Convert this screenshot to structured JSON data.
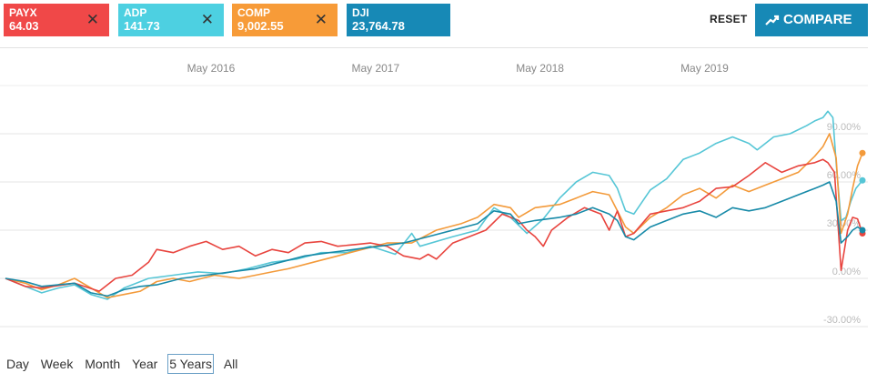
{
  "tickers": [
    {
      "symbol": "PAYX",
      "price": "64.03",
      "color": "#f04848",
      "line": "#e8443e"
    },
    {
      "symbol": "ADP",
      "price": "141.73",
      "color": "#4dd0e1",
      "line": "#56c6d6"
    },
    {
      "symbol": "COMP",
      "price": "9,002.55",
      "color": "#f79b38",
      "line": "#f39a3a"
    },
    {
      "symbol": "DJI",
      "price": "23,764.78",
      "color": "#1789b6",
      "line": "#178aa8"
    }
  ],
  "toolbar": {
    "reset_label": "RESET",
    "compare_label": "COMPARE",
    "close_glyph": "✕"
  },
  "range": {
    "items": [
      "Day",
      "Week",
      "Month",
      "Year",
      "5 Years",
      "All"
    ],
    "selected": "5 Years"
  },
  "chart_data": {
    "type": "line",
    "x_range": [
      2015.08,
      2020.29
    ],
    "ylim": [
      -35,
      110
    ],
    "x_ticks": [
      {
        "label": "May 2016",
        "x": 2016.33
      },
      {
        "label": "May 2017",
        "x": 2017.33
      },
      {
        "label": "May 2018",
        "x": 2018.33
      },
      {
        "label": "May 2019",
        "x": 2019.33
      }
    ],
    "y_ticks": [
      {
        "label": "90.00%",
        "value": 90
      },
      {
        "label": "60.00%",
        "value": 60
      },
      {
        "label": "30.00%",
        "value": 30
      },
      {
        "label": "0.00%",
        "value": 0
      },
      {
        "label": "-30.00%",
        "value": -30
      }
    ],
    "grid": true,
    "series": [
      {
        "name": "PAYX",
        "points": [
          [
            2015.08,
            0
          ],
          [
            2015.2,
            -5
          ],
          [
            2015.3,
            -6
          ],
          [
            2015.5,
            -3
          ],
          [
            2015.65,
            -8
          ],
          [
            2015.75,
            0
          ],
          [
            2015.85,
            2
          ],
          [
            2015.95,
            10
          ],
          [
            2016.0,
            18
          ],
          [
            2016.1,
            16
          ],
          [
            2016.2,
            20
          ],
          [
            2016.3,
            23
          ],
          [
            2016.4,
            18
          ],
          [
            2016.5,
            20
          ],
          [
            2016.6,
            14
          ],
          [
            2016.7,
            18
          ],
          [
            2016.8,
            16
          ],
          [
            2016.9,
            22
          ],
          [
            2017.0,
            23
          ],
          [
            2017.1,
            20
          ],
          [
            2017.2,
            21
          ],
          [
            2017.3,
            22
          ],
          [
            2017.4,
            20
          ],
          [
            2017.5,
            14
          ],
          [
            2017.6,
            12
          ],
          [
            2017.65,
            15
          ],
          [
            2017.7,
            12
          ],
          [
            2017.8,
            22
          ],
          [
            2017.9,
            26
          ],
          [
            2018.0,
            30
          ],
          [
            2018.1,
            40
          ],
          [
            2018.15,
            38
          ],
          [
            2018.2,
            36
          ],
          [
            2018.25,
            30
          ],
          [
            2018.3,
            26
          ],
          [
            2018.35,
            20
          ],
          [
            2018.4,
            30
          ],
          [
            2018.5,
            38
          ],
          [
            2018.6,
            44
          ],
          [
            2018.7,
            40
          ],
          [
            2018.75,
            30
          ],
          [
            2018.8,
            42
          ],
          [
            2018.85,
            26
          ],
          [
            2018.9,
            28
          ],
          [
            2019.0,
            40
          ],
          [
            2019.1,
            42
          ],
          [
            2019.2,
            44
          ],
          [
            2019.3,
            48
          ],
          [
            2019.4,
            56
          ],
          [
            2019.5,
            57
          ],
          [
            2019.6,
            64
          ],
          [
            2019.7,
            72
          ],
          [
            2019.8,
            66
          ],
          [
            2019.9,
            70
          ],
          [
            2020.0,
            72
          ],
          [
            2020.05,
            74
          ],
          [
            2020.08,
            72
          ],
          [
            2020.12,
            66
          ],
          [
            2020.16,
            5
          ],
          [
            2020.2,
            30
          ],
          [
            2020.23,
            38
          ],
          [
            2020.26,
            37
          ],
          [
            2020.29,
            28
          ]
        ]
      },
      {
        "name": "ADP",
        "points": [
          [
            2015.08,
            0
          ],
          [
            2015.2,
            -5
          ],
          [
            2015.3,
            -9
          ],
          [
            2015.4,
            -6
          ],
          [
            2015.5,
            -4
          ],
          [
            2015.6,
            -10
          ],
          [
            2015.7,
            -13
          ],
          [
            2015.8,
            -6
          ],
          [
            2015.95,
            0
          ],
          [
            2016.1,
            2
          ],
          [
            2016.25,
            4
          ],
          [
            2016.4,
            3
          ],
          [
            2016.55,
            6
          ],
          [
            2016.7,
            10
          ],
          [
            2016.85,
            12
          ],
          [
            2017.0,
            16
          ],
          [
            2017.15,
            16
          ],
          [
            2017.3,
            20
          ],
          [
            2017.45,
            15
          ],
          [
            2017.55,
            28
          ],
          [
            2017.6,
            20
          ],
          [
            2017.8,
            26
          ],
          [
            2017.95,
            30
          ],
          [
            2018.05,
            44
          ],
          [
            2018.15,
            38
          ],
          [
            2018.25,
            28
          ],
          [
            2018.35,
            37
          ],
          [
            2018.45,
            50
          ],
          [
            2018.55,
            60
          ],
          [
            2018.65,
            66
          ],
          [
            2018.75,
            64
          ],
          [
            2018.8,
            56
          ],
          [
            2018.85,
            42
          ],
          [
            2018.9,
            40
          ],
          [
            2019.0,
            55
          ],
          [
            2019.1,
            62
          ],
          [
            2019.2,
            74
          ],
          [
            2019.3,
            78
          ],
          [
            2019.4,
            84
          ],
          [
            2019.5,
            88
          ],
          [
            2019.6,
            84
          ],
          [
            2019.65,
            80
          ],
          [
            2019.75,
            88
          ],
          [
            2019.85,
            90
          ],
          [
            2019.95,
            95
          ],
          [
            2020.0,
            98
          ],
          [
            2020.05,
            100
          ],
          [
            2020.08,
            104
          ],
          [
            2020.11,
            100
          ],
          [
            2020.13,
            72
          ],
          [
            2020.16,
            36
          ],
          [
            2020.19,
            38
          ],
          [
            2020.22,
            48
          ],
          [
            2020.25,
            56
          ],
          [
            2020.29,
            61
          ]
        ]
      },
      {
        "name": "COMP",
        "points": [
          [
            2015.08,
            0
          ],
          [
            2015.2,
            -3
          ],
          [
            2015.3,
            -7
          ],
          [
            2015.4,
            -4
          ],
          [
            2015.5,
            0
          ],
          [
            2015.6,
            -6
          ],
          [
            2015.7,
            -12
          ],
          [
            2015.8,
            -10
          ],
          [
            2015.9,
            -8
          ],
          [
            2016.0,
            -2
          ],
          [
            2016.1,
            0
          ],
          [
            2016.2,
            -2
          ],
          [
            2016.35,
            2
          ],
          [
            2016.5,
            0
          ],
          [
            2016.6,
            2
          ],
          [
            2016.7,
            4
          ],
          [
            2016.8,
            6
          ],
          [
            2016.95,
            10
          ],
          [
            2017.1,
            14
          ],
          [
            2017.25,
            18
          ],
          [
            2017.4,
            22
          ],
          [
            2017.55,
            22
          ],
          [
            2017.7,
            30
          ],
          [
            2017.85,
            34
          ],
          [
            2017.95,
            38
          ],
          [
            2018.05,
            46
          ],
          [
            2018.15,
            44
          ],
          [
            2018.2,
            38
          ],
          [
            2018.3,
            44
          ],
          [
            2018.45,
            46
          ],
          [
            2018.55,
            50
          ],
          [
            2018.65,
            54
          ],
          [
            2018.75,
            52
          ],
          [
            2018.8,
            42
          ],
          [
            2018.85,
            32
          ],
          [
            2018.9,
            28
          ],
          [
            2019.0,
            38
          ],
          [
            2019.1,
            44
          ],
          [
            2019.2,
            52
          ],
          [
            2019.3,
            56
          ],
          [
            2019.4,
            50
          ],
          [
            2019.5,
            58
          ],
          [
            2019.6,
            54
          ],
          [
            2019.7,
            58
          ],
          [
            2019.8,
            62
          ],
          [
            2019.9,
            66
          ],
          [
            2020.0,
            76
          ],
          [
            2020.05,
            82
          ],
          [
            2020.09,
            90
          ],
          [
            2020.13,
            75
          ],
          [
            2020.16,
            28
          ],
          [
            2020.2,
            40
          ],
          [
            2020.23,
            56
          ],
          [
            2020.26,
            70
          ],
          [
            2020.29,
            78
          ]
        ]
      },
      {
        "name": "DJI",
        "points": [
          [
            2015.08,
            0
          ],
          [
            2015.2,
            -2
          ],
          [
            2015.3,
            -5
          ],
          [
            2015.4,
            -4
          ],
          [
            2015.5,
            -3
          ],
          [
            2015.6,
            -9
          ],
          [
            2015.7,
            -11
          ],
          [
            2015.8,
            -7
          ],
          [
            2015.9,
            -5
          ],
          [
            2016.0,
            -4
          ],
          [
            2016.15,
            0
          ],
          [
            2016.3,
            2
          ],
          [
            2016.45,
            4
          ],
          [
            2016.6,
            6
          ],
          [
            2016.75,
            10
          ],
          [
            2016.9,
            14
          ],
          [
            2017.05,
            16
          ],
          [
            2017.2,
            18
          ],
          [
            2017.35,
            20
          ],
          [
            2017.5,
            22
          ],
          [
            2017.65,
            26
          ],
          [
            2017.8,
            30
          ],
          [
            2017.95,
            34
          ],
          [
            2018.05,
            42
          ],
          [
            2018.15,
            40
          ],
          [
            2018.2,
            34
          ],
          [
            2018.3,
            36
          ],
          [
            2018.45,
            38
          ],
          [
            2018.55,
            40
          ],
          [
            2018.65,
            44
          ],
          [
            2018.75,
            40
          ],
          [
            2018.8,
            36
          ],
          [
            2018.85,
            26
          ],
          [
            2018.9,
            24
          ],
          [
            2019.0,
            32
          ],
          [
            2019.1,
            36
          ],
          [
            2019.2,
            40
          ],
          [
            2019.3,
            42
          ],
          [
            2019.4,
            38
          ],
          [
            2019.5,
            44
          ],
          [
            2019.6,
            42
          ],
          [
            2019.7,
            44
          ],
          [
            2019.8,
            48
          ],
          [
            2019.9,
            52
          ],
          [
            2020.0,
            56
          ],
          [
            2020.05,
            58
          ],
          [
            2020.09,
            60
          ],
          [
            2020.13,
            48
          ],
          [
            2020.16,
            22
          ],
          [
            2020.2,
            26
          ],
          [
            2020.23,
            30
          ],
          [
            2020.26,
            32
          ],
          [
            2020.29,
            30
          ]
        ]
      }
    ]
  }
}
